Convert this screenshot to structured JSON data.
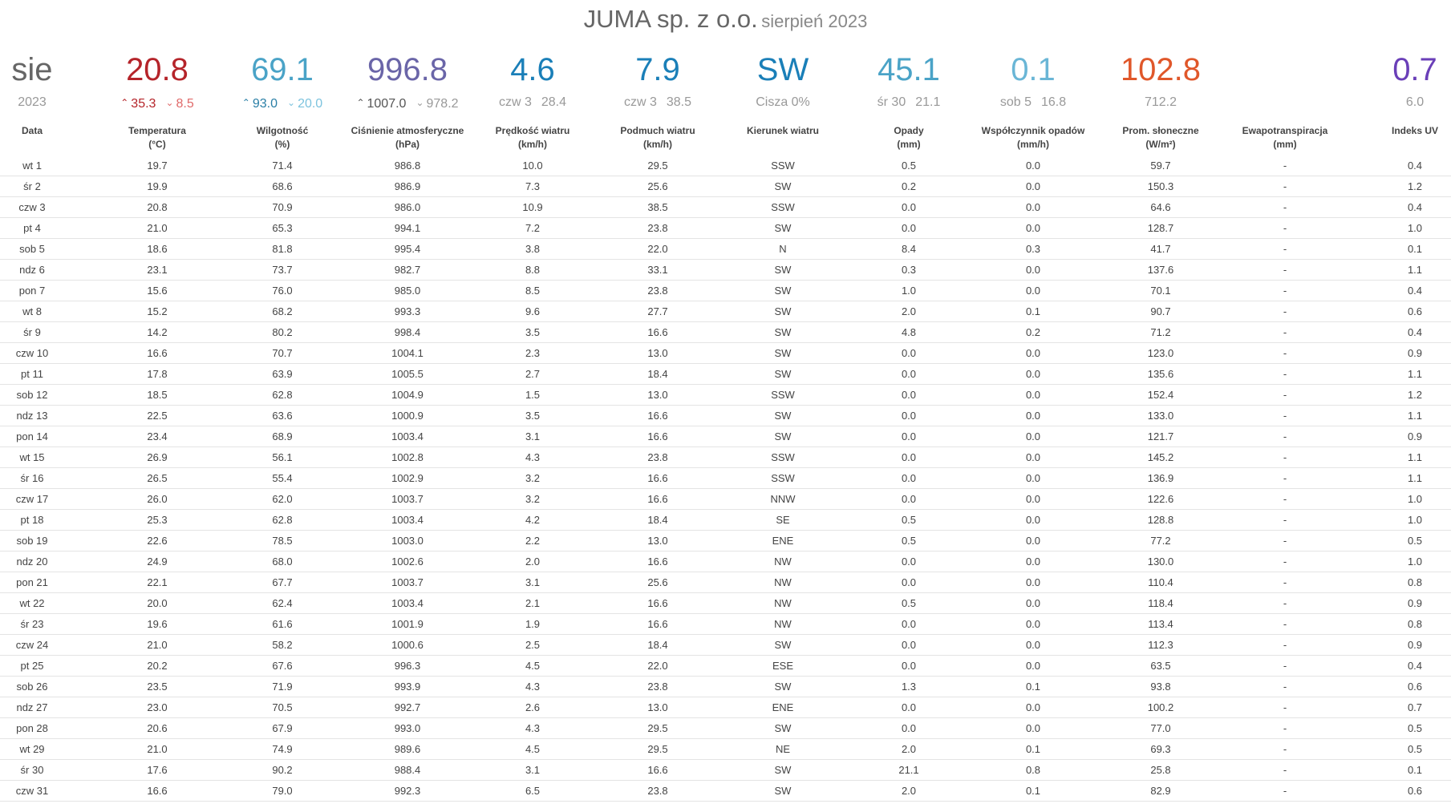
{
  "header": {
    "title": "JUMA sp. z o.o.",
    "subtitle": "sierpień 2023"
  },
  "summary": [
    {
      "value": "sie",
      "sub_left": "2023",
      "sub_right": "",
      "color": "#666666",
      "arrows": false
    },
    {
      "value": "20.8",
      "sub_left": "35.3",
      "sub_right": "8.5",
      "color": "#b5242a",
      "arrows": true,
      "sub_left_color": "#b5242a",
      "sub_right_color": "#e06a6a"
    },
    {
      "value": "69.1",
      "sub_left": "93.0",
      "sub_right": "20.0",
      "color": "#4aa3c7",
      "arrows": true,
      "sub_left_color": "#2a7fa6",
      "sub_right_color": "#7cc3de"
    },
    {
      "value": "996.8",
      "sub_left": "1007.0",
      "sub_right": "978.2",
      "color": "#6a65a8",
      "arrows": true,
      "sub_left_color": "#555555",
      "sub_right_color": "#999999"
    },
    {
      "value": "4.6",
      "sub_left": "czw 3",
      "sub_right": "28.4",
      "color": "#1a7fb8",
      "arrows": false
    },
    {
      "value": "7.9",
      "sub_left": "czw 3",
      "sub_right": "38.5",
      "color": "#1a7fb8",
      "arrows": false
    },
    {
      "value": "SW",
      "sub_left": "Cisza 0%",
      "sub_right": "",
      "color": "#1a7fb8",
      "arrows": false
    },
    {
      "value": "45.1",
      "sub_left": "śr 30",
      "sub_right": "21.1",
      "color": "#4aa3c7",
      "arrows": false
    },
    {
      "value": "0.1",
      "sub_left": "sob 5",
      "sub_right": "16.8",
      "color": "#6ab6d6",
      "arrows": false
    },
    {
      "value": "102.8",
      "sub_left": "712.2",
      "sub_right": "",
      "color": "#e0572a",
      "arrows": false
    },
    {
      "value": "",
      "sub_left": "",
      "sub_right": "",
      "color": "#999999",
      "arrows": false
    },
    {
      "value": "0.7",
      "sub_left": "6.0",
      "sub_right": "",
      "color": "#6a3fb8",
      "arrows": false
    }
  ],
  "columns": [
    {
      "label": "Data",
      "unit": ""
    },
    {
      "label": "Temperatura",
      "unit": "(°C)"
    },
    {
      "label": "Wilgotność",
      "unit": "(%)"
    },
    {
      "label": "Ciśnienie atmosferyczne",
      "unit": "(hPa)"
    },
    {
      "label": "Prędkość wiatru",
      "unit": "(km/h)"
    },
    {
      "label": "Podmuch wiatru",
      "unit": "(km/h)"
    },
    {
      "label": "Kierunek wiatru",
      "unit": ""
    },
    {
      "label": "Opady",
      "unit": "(mm)"
    },
    {
      "label": "Współczynnik opadów",
      "unit": "(mm/h)"
    },
    {
      "label": "Prom. słoneczne",
      "unit": "(W/m²)"
    },
    {
      "label": "Ewapotranspiracja",
      "unit": "(mm)"
    },
    {
      "label": "Indeks UV",
      "unit": ""
    }
  ],
  "rows": [
    [
      "wt 1",
      "19.7",
      "71.4",
      "986.8",
      "10.0",
      "29.5",
      "SSW",
      "0.5",
      "0.0",
      "59.7",
      "-",
      "0.4"
    ],
    [
      "śr 2",
      "19.9",
      "68.6",
      "986.9",
      "7.3",
      "25.6",
      "SW",
      "0.2",
      "0.0",
      "150.3",
      "-",
      "1.2"
    ],
    [
      "czw 3",
      "20.8",
      "70.9",
      "986.0",
      "10.9",
      "38.5",
      "SSW",
      "0.0",
      "0.0",
      "64.6",
      "-",
      "0.4"
    ],
    [
      "pt 4",
      "21.0",
      "65.3",
      "994.1",
      "7.2",
      "23.8",
      "SW",
      "0.0",
      "0.0",
      "128.7",
      "-",
      "1.0"
    ],
    [
      "sob 5",
      "18.6",
      "81.8",
      "995.4",
      "3.8",
      "22.0",
      "N",
      "8.4",
      "0.3",
      "41.7",
      "-",
      "0.1"
    ],
    [
      "ndz 6",
      "23.1",
      "73.7",
      "982.7",
      "8.8",
      "33.1",
      "SW",
      "0.3",
      "0.0",
      "137.6",
      "-",
      "1.1"
    ],
    [
      "pon 7",
      "15.6",
      "76.0",
      "985.0",
      "8.5",
      "23.8",
      "SW",
      "1.0",
      "0.0",
      "70.1",
      "-",
      "0.4"
    ],
    [
      "wt 8",
      "15.2",
      "68.2",
      "993.3",
      "9.6",
      "27.7",
      "SW",
      "2.0",
      "0.1",
      "90.7",
      "-",
      "0.6"
    ],
    [
      "śr 9",
      "14.2",
      "80.2",
      "998.4",
      "3.5",
      "16.6",
      "SW",
      "4.8",
      "0.2",
      "71.2",
      "-",
      "0.4"
    ],
    [
      "czw 10",
      "16.6",
      "70.7",
      "1004.1",
      "2.3",
      "13.0",
      "SW",
      "0.0",
      "0.0",
      "123.0",
      "-",
      "0.9"
    ],
    [
      "pt 11",
      "17.8",
      "63.9",
      "1005.5",
      "2.7",
      "18.4",
      "SW",
      "0.0",
      "0.0",
      "135.6",
      "-",
      "1.1"
    ],
    [
      "sob 12",
      "18.5",
      "62.8",
      "1004.9",
      "1.5",
      "13.0",
      "SSW",
      "0.0",
      "0.0",
      "152.4",
      "-",
      "1.2"
    ],
    [
      "ndz 13",
      "22.5",
      "63.6",
      "1000.9",
      "3.5",
      "16.6",
      "SW",
      "0.0",
      "0.0",
      "133.0",
      "-",
      "1.1"
    ],
    [
      "pon 14",
      "23.4",
      "68.9",
      "1003.4",
      "3.1",
      "16.6",
      "SW",
      "0.0",
      "0.0",
      "121.7",
      "-",
      "0.9"
    ],
    [
      "wt 15",
      "26.9",
      "56.1",
      "1002.8",
      "4.3",
      "23.8",
      "SSW",
      "0.0",
      "0.0",
      "145.2",
      "-",
      "1.1"
    ],
    [
      "śr 16",
      "26.5",
      "55.4",
      "1002.9",
      "3.2",
      "16.6",
      "SSW",
      "0.0",
      "0.0",
      "136.9",
      "-",
      "1.1"
    ],
    [
      "czw 17",
      "26.0",
      "62.0",
      "1003.7",
      "3.2",
      "16.6",
      "NNW",
      "0.0",
      "0.0",
      "122.6",
      "-",
      "1.0"
    ],
    [
      "pt 18",
      "25.3",
      "62.8",
      "1003.4",
      "4.2",
      "18.4",
      "SE",
      "0.5",
      "0.0",
      "128.8",
      "-",
      "1.0"
    ],
    [
      "sob 19",
      "22.6",
      "78.5",
      "1003.0",
      "2.2",
      "13.0",
      "ENE",
      "0.5",
      "0.0",
      "77.2",
      "-",
      "0.5"
    ],
    [
      "ndz 20",
      "24.9",
      "68.0",
      "1002.6",
      "2.0",
      "16.6",
      "NW",
      "0.0",
      "0.0",
      "130.0",
      "-",
      "1.0"
    ],
    [
      "pon 21",
      "22.1",
      "67.7",
      "1003.7",
      "3.1",
      "25.6",
      "NW",
      "0.0",
      "0.0",
      "110.4",
      "-",
      "0.8"
    ],
    [
      "wt 22",
      "20.0",
      "62.4",
      "1003.4",
      "2.1",
      "16.6",
      "NW",
      "0.5",
      "0.0",
      "118.4",
      "-",
      "0.9"
    ],
    [
      "śr 23",
      "19.6",
      "61.6",
      "1001.9",
      "1.9",
      "16.6",
      "NW",
      "0.0",
      "0.0",
      "113.4",
      "-",
      "0.8"
    ],
    [
      "czw 24",
      "21.0",
      "58.2",
      "1000.6",
      "2.5",
      "18.4",
      "SW",
      "0.0",
      "0.0",
      "112.3",
      "-",
      "0.9"
    ],
    [
      "pt 25",
      "20.2",
      "67.6",
      "996.3",
      "4.5",
      "22.0",
      "ESE",
      "0.0",
      "0.0",
      "63.5",
      "-",
      "0.4"
    ],
    [
      "sob 26",
      "23.5",
      "71.9",
      "993.9",
      "4.3",
      "23.8",
      "SW",
      "1.3",
      "0.1",
      "93.8",
      "-",
      "0.6"
    ],
    [
      "ndz 27",
      "23.0",
      "70.5",
      "992.7",
      "2.6",
      "13.0",
      "ENE",
      "0.0",
      "0.0",
      "100.2",
      "-",
      "0.7"
    ],
    [
      "pon 28",
      "20.6",
      "67.9",
      "993.0",
      "4.3",
      "29.5",
      "SW",
      "0.0",
      "0.0",
      "77.0",
      "-",
      "0.5"
    ],
    [
      "wt 29",
      "21.0",
      "74.9",
      "989.6",
      "4.5",
      "29.5",
      "NE",
      "2.0",
      "0.1",
      "69.3",
      "-",
      "0.5"
    ],
    [
      "śr 30",
      "17.6",
      "90.2",
      "988.4",
      "3.1",
      "16.6",
      "SW",
      "21.1",
      "0.8",
      "25.8",
      "-",
      "0.1"
    ],
    [
      "czw 31",
      "16.6",
      "79.0",
      "992.3",
      "6.5",
      "23.8",
      "SW",
      "2.0",
      "0.1",
      "82.9",
      "-",
      "0.6"
    ]
  ]
}
